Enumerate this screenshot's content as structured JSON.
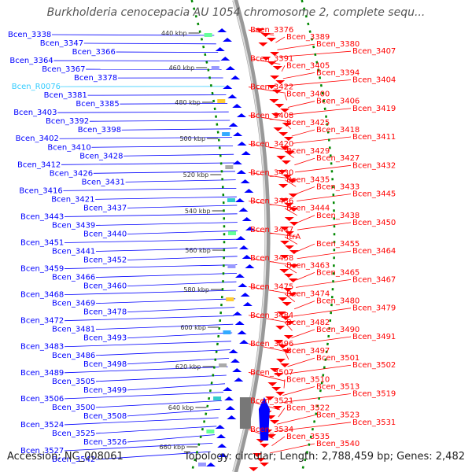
{
  "title": "Burkholderia cenocepacia AU 1054 chromosome 2, complete sequ...",
  "accession": "Accession: NC_008061",
  "stats": "Topology: circular; Length: 2,788,459 bp; Genes: 2,482",
  "colors": {
    "forward": "#0000ff",
    "reverse": "#ff0000",
    "highlight": "#33ccff",
    "backbone": "#999999",
    "tick": "#008800"
  },
  "kbp_ticks": [
    "440 kbp",
    "460 kbp",
    "480 kbp",
    "500 kbp",
    "520 kbp",
    "540 kbp",
    "560 kbp",
    "580 kbp",
    "600 kbp",
    "620 kbp",
    "640 kbp",
    "660 kbp"
  ],
  "left_labels": [
    "Bcen_3338",
    "Bcen_3347",
    "Bcen_3366",
    "Bcen_3364",
    "Bcen_3367",
    "Bcen_3378",
    "Bcen_R0076",
    "Bcen_3381",
    "Bcen_3385",
    "Bcen_3403",
    "Bcen_3392",
    "Bcen_3398",
    "Bcen_3402",
    "Bcen_3410",
    "Bcen_3428",
    "Bcen_3412",
    "Bcen_3426",
    "Bcen_3431",
    "Bcen_3416",
    "Bcen_3421",
    "Bcen_3437",
    "Bcen_3443",
    "Bcen_3439",
    "Bcen_3440",
    "Bcen_3451",
    "Bcen_3441",
    "Bcen_3452",
    "Bcen_3459",
    "Bcen_3466",
    "Bcen_3460",
    "Bcen_3468",
    "Bcen_3469",
    "Bcen_3478",
    "Bcen_3472",
    "Bcen_3481",
    "Bcen_3493",
    "Bcen_3483",
    "Bcen_3486",
    "Bcen_3498",
    "Bcen_3489",
    "Bcen_3505",
    "Bcen_3499",
    "Bcen_3506",
    "Bcen_3500",
    "Bcen_3508",
    "Bcen_3524",
    "Bcen_3525",
    "Bcen_3526",
    "Bcen_3527",
    "Bcen_3542"
  ],
  "right_labels": [
    "Bcen_3376",
    "Bcen_3389",
    "Bcen_3380",
    "Bcen_3407",
    "Bcen_3391",
    "Bcen_3405",
    "Bcen_3394",
    "Bcen_3404",
    "Bcen_3422",
    "Bcen_3400",
    "Bcen_3406",
    "Bcen_3419",
    "Bcen_3408",
    "Bcen_3425",
    "Bcen_3418",
    "Bcen_3411",
    "Bcen_3420",
    "Bcen_3429",
    "Bcen_3427",
    "Bcen_3432",
    "Bcen_3430",
    "Bcen_3435",
    "Bcen_3433",
    "Bcen_3445",
    "Bcen_3436",
    "Bcen_3444",
    "Bcen_3438",
    "Bcen_3450",
    "Bcen_3447",
    "ftrA",
    "Bcen_3455",
    "Bcen_3464",
    "Bcen_3458",
    "Bcen_3463",
    "Bcen_3465",
    "Bcen_3467",
    "Bcen_3475",
    "Bcen_3474",
    "Bcen_3480",
    "Bcen_3479",
    "Bcen_3484",
    "Bcen_3482",
    "Bcen_3490",
    "Bcen_3491",
    "Bcen_3496",
    "Bcen_3497",
    "Bcen_3501",
    "Bcen_3502",
    "Bcen_3507",
    "Bcen_3510",
    "Bcen_3513",
    "Bcen_3519",
    "Bcen_3521",
    "Bcen_3522",
    "Bcen_3523",
    "Bcen_3531",
    "Bcen_3534",
    "Bcen_3535",
    "Bcen_3540"
  ]
}
